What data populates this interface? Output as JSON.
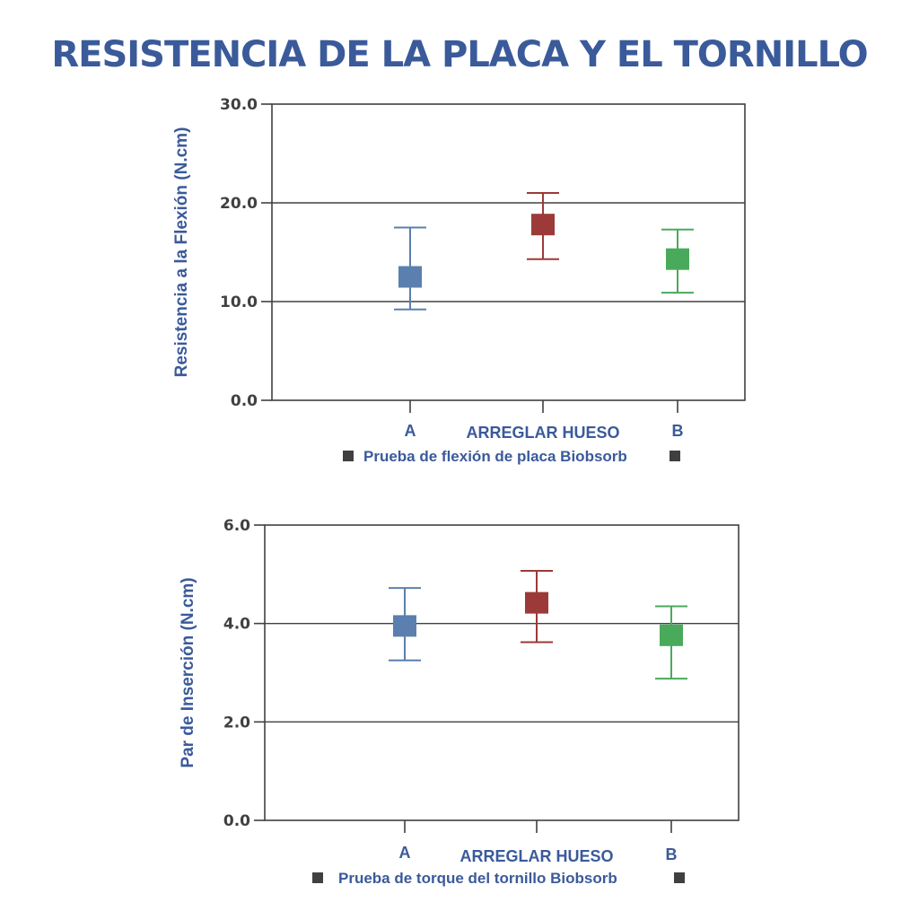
{
  "title": "RESISTENCIA DE LA PLACA Y EL TORNILLO",
  "colors": {
    "title": "#3a5a9a",
    "A": "#5b7fae",
    "HUESO": "#9b3a38",
    "B": "#4aaa5c",
    "axis": "#404040"
  },
  "chart_data": [
    {
      "type": "errorbar",
      "ylabel": "Resistencia a la Flexión (N.cm)",
      "ylim": [
        0,
        30
      ],
      "yticks": [
        "0.0",
        "10.0",
        "20.0",
        "30.0"
      ],
      "ytick_values": [
        0,
        10,
        20,
        30
      ],
      "grid": true,
      "categories": [
        "A",
        "ARREGLAR HUESO",
        "B"
      ],
      "series": [
        {
          "category": "A",
          "mean": 12.5,
          "low": 9.2,
          "high": 17.5,
          "color": "#5b7fae"
        },
        {
          "category": "ARREGLAR HUESO",
          "mean": 17.8,
          "low": 14.3,
          "high": 21.0,
          "color": "#9b3a38"
        },
        {
          "category": "B",
          "mean": 14.3,
          "low": 10.9,
          "high": 17.3,
          "color": "#4aaa5c"
        }
      ],
      "legend": "Prueba de flexión de placa Biobsorb"
    },
    {
      "type": "errorbar",
      "ylabel": "Par de Inserción  (N.cm)",
      "ylim": [
        0,
        6
      ],
      "yticks": [
        "0.0",
        "2.0",
        "4.0",
        "6.0"
      ],
      "ytick_values": [
        0,
        2,
        4,
        6
      ],
      "grid": true,
      "categories": [
        "A",
        "ARREGLAR HUESO",
        "B"
      ],
      "series": [
        {
          "category": "A",
          "mean": 3.95,
          "low": 3.25,
          "high": 4.72,
          "color": "#5b7fae"
        },
        {
          "category": "ARREGLAR HUESO",
          "mean": 4.42,
          "low": 3.62,
          "high": 5.07,
          "color": "#9b3a38"
        },
        {
          "category": "B",
          "mean": 3.76,
          "low": 2.88,
          "high": 4.35,
          "color": "#4aaa5c"
        }
      ],
      "legend": "Prueba de torque del tornillo Biobsorb"
    }
  ]
}
